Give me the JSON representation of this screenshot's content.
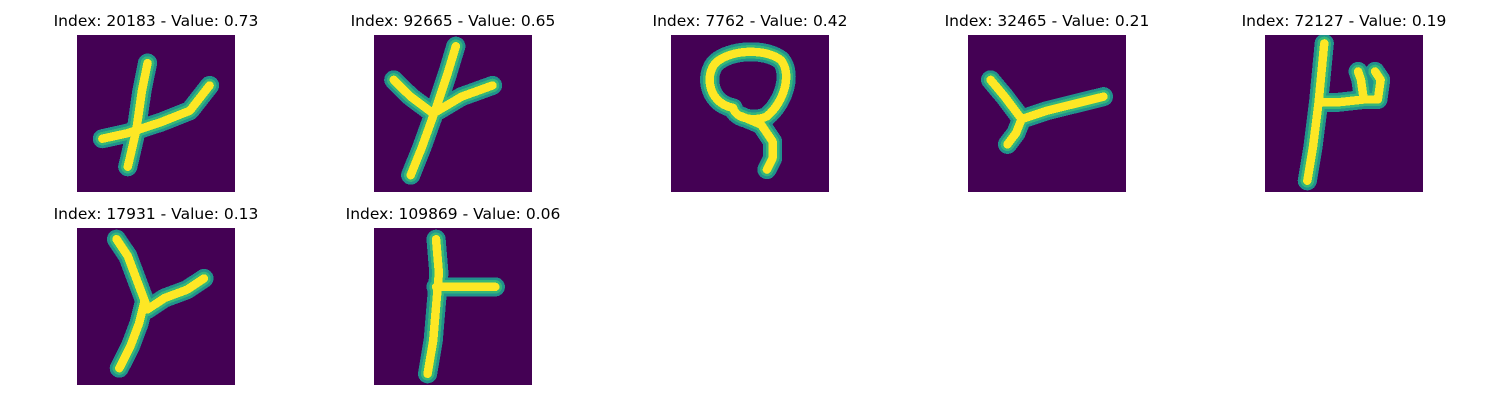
{
  "figure": {
    "panels": [
      {
        "title": "Index: 20183 - Value: 0.73",
        "glyph": "cross-branch",
        "index": 20183,
        "value": 0.73
      },
      {
        "title": "Index: 92665 - Value: 0.65",
        "glyph": "fork-y",
        "index": 92665,
        "value": 0.65
      },
      {
        "title": "Index: 7762 - Value: 0.42",
        "glyph": "loop",
        "index": 7762,
        "value": 0.42
      },
      {
        "title": "Index: 32465 - Value: 0.21",
        "glyph": "tilted-y",
        "index": 32465,
        "value": 0.21
      },
      {
        "title": "Index: 72127 - Value: 0.19",
        "glyph": "bold-stem-hook",
        "index": 72127,
        "value": 0.19
      },
      {
        "title": "Index: 17931 - Value: 0.13",
        "glyph": "curved-y",
        "index": 17931,
        "value": 0.13
      },
      {
        "title": "Index: 109869 - Value: 0.06",
        "glyph": "stem-bar",
        "index": 109869,
        "value": 0.06
      }
    ],
    "colors": {
      "background": "#440154",
      "stroke_core": "#fde725",
      "stroke_edge": "#35b779",
      "stroke_halo": "#21918c"
    }
  }
}
